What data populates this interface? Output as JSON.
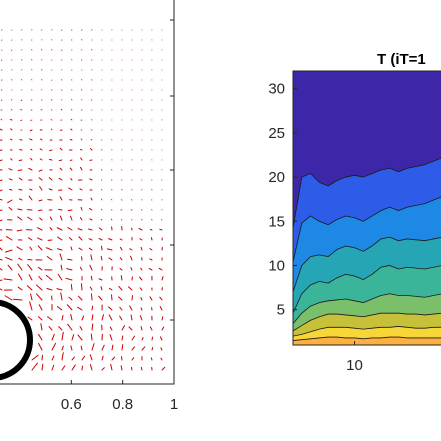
{
  "chart_data": [
    {
      "type": "quiver",
      "title": "",
      "xlabel": "",
      "ylabel": "",
      "xlim": [
        0.4,
        1.0
      ],
      "x_ticks": [
        {
          "value": 0.6,
          "label": "0.6"
        },
        {
          "value": 0.8,
          "label": "0.8"
        },
        {
          "value": 1.0,
          "label": "1"
        }
      ],
      "arrow_color": "#cc0000",
      "obstacle": {
        "shape": "circle",
        "center": [
          0.4,
          0.08
        ],
        "radius": 0.085,
        "color": "#000000"
      }
    },
    {
      "type": "contourf",
      "title": "T (iT=1",
      "xlabel": "",
      "ylabel": "",
      "xlim": [
        3,
        22
      ],
      "ylim": [
        1,
        32
      ],
      "x_ticks": [
        {
          "value": 10,
          "label": "10"
        }
      ],
      "y_ticks": [
        {
          "value": 5,
          "label": "5"
        },
        {
          "value": 10,
          "label": "10"
        },
        {
          "value": 15,
          "label": "15"
        },
        {
          "value": 20,
          "label": "20"
        },
        {
          "value": 25,
          "label": "25"
        },
        {
          "value": 30,
          "label": "30"
        }
      ],
      "x": [
        3,
        4,
        5,
        6,
        7,
        8,
        9,
        10,
        11,
        12,
        13,
        14,
        15,
        16,
        17,
        18,
        19,
        20,
        21,
        22
      ],
      "level_colors": [
        "#3e26a8",
        "#2c5ce8",
        "#1e88e5",
        "#26a6b4",
        "#3ab59a",
        "#7abf6a",
        "#c7c13a",
        "#f7d737",
        "#fbb040"
      ],
      "level_boundaries": [
        [
          1.5,
          1.6,
          1.7,
          1.8,
          1.9,
          1.9,
          1.8,
          1.8,
          1.7,
          1.8,
          1.8,
          1.9,
          1.9,
          1.8,
          1.8,
          1.8,
          1.8,
          1.8,
          1.8,
          1.8
        ],
        [
          2.0,
          2.2,
          2.5,
          2.8,
          3.0,
          3.0,
          3.0,
          2.9,
          2.8,
          2.9,
          3.0,
          3.0,
          3.1,
          3.0,
          2.9,
          2.9,
          3.0,
          3.0,
          3.0,
          3.0
        ],
        [
          2.6,
          3.2,
          3.8,
          4.2,
          4.5,
          4.5,
          4.4,
          4.3,
          4.2,
          4.4,
          4.6,
          4.6,
          4.6,
          4.5,
          4.5,
          4.4,
          4.5,
          4.6,
          4.6,
          4.7
        ],
        [
          3.4,
          4.6,
          5.4,
          5.8,
          6.0,
          6.1,
          6.2,
          6.0,
          5.8,
          6.2,
          6.6,
          6.8,
          6.6,
          6.6,
          6.5,
          6.4,
          6.6,
          6.8,
          7.0,
          7.0
        ],
        [
          4.6,
          6.8,
          7.8,
          8.2,
          8.0,
          8.6,
          9.0,
          8.8,
          8.4,
          9.0,
          9.8,
          10.0,
          9.6,
          9.8,
          9.7,
          9.6,
          9.8,
          10.0,
          10.2,
          10.4
        ],
        [
          7.0,
          10.0,
          11.0,
          11.2,
          11.0,
          11.8,
          12.2,
          12.0,
          11.6,
          12.2,
          13.0,
          13.2,
          12.8,
          13.0,
          12.9,
          12.8,
          13.0,
          13.2,
          13.5,
          13.8
        ],
        [
          10.4,
          14.8,
          15.6,
          15.0,
          14.6,
          15.2,
          15.6,
          15.4,
          15.0,
          15.6,
          16.2,
          16.6,
          16.2,
          16.6,
          16.8,
          17.0,
          17.4,
          17.8,
          18.4,
          19.0
        ],
        [
          14.2,
          20.0,
          20.4,
          19.4,
          19.0,
          19.6,
          20.0,
          20.2,
          20.0,
          20.4,
          20.8,
          21.0,
          20.6,
          21.0,
          21.2,
          21.4,
          21.8,
          22.2,
          22.8,
          23.4
        ]
      ]
    }
  ]
}
